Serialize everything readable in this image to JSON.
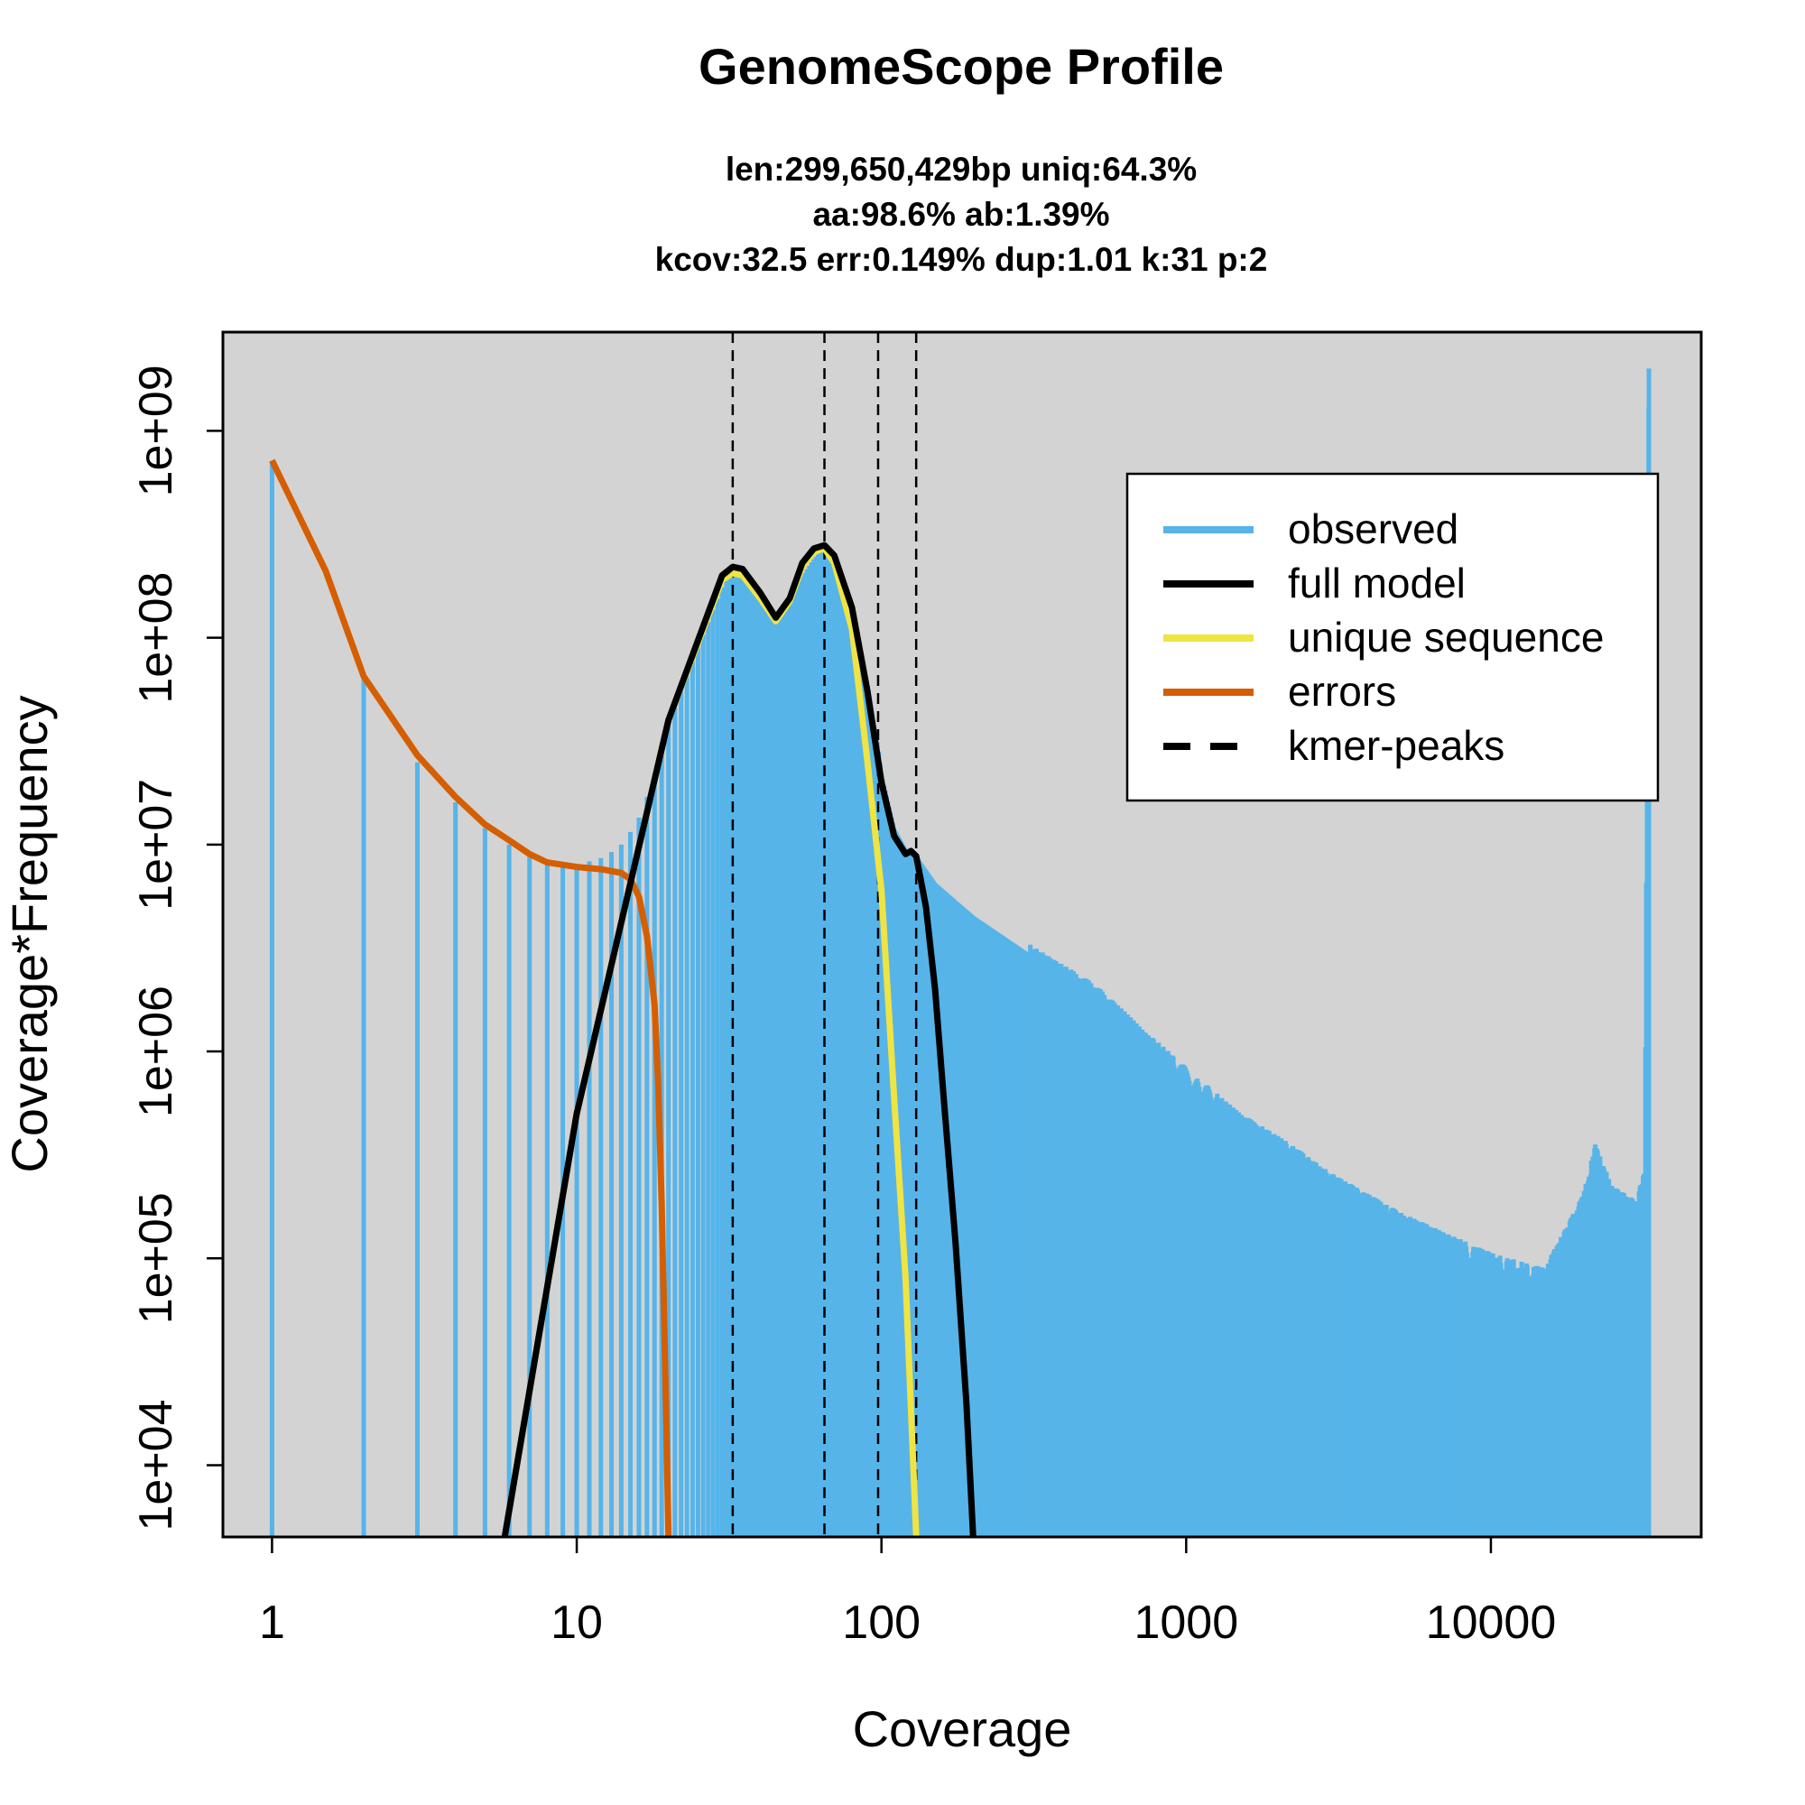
{
  "chart_data": {
    "type": "bar",
    "title": "GenomeScope Profile",
    "subtitle_lines": [
      "len:299,650,429bp uniq:64.3%",
      "aa:98.6% ab:1.39%",
      "kcov:32.5 err:0.149%  dup:1.01  k:31 p:2"
    ],
    "xlabel": "Coverage",
    "ylabel": "Coverage*Frequency",
    "x_scale": "log",
    "y_scale": "log",
    "xlim": [
      0.69,
      49000
    ],
    "ylim": [
      4500,
      3000000000
    ],
    "x_ticks": [
      1,
      10,
      100,
      1000,
      10000
    ],
    "x_tick_labels": [
      "1",
      "10",
      "100",
      "1000",
      "10000"
    ],
    "y_ticks": [
      10000,
      100000,
      1000000,
      10000000,
      100000000,
      1000000000
    ],
    "y_tick_labels": [
      "1e+04",
      "1e+05",
      "1e+06",
      "1e+07",
      "1e+08",
      "1e+09"
    ],
    "background_color": "#d3d3d3",
    "legend_position": "top-right",
    "legend": [
      {
        "label": "observed",
        "color": "#56b4e9",
        "style": "solid"
      },
      {
        "label": "full model",
        "color": "#000000",
        "style": "solid"
      },
      {
        "label": "unique sequence",
        "color": "#f0e442",
        "style": "solid"
      },
      {
        "label": "errors",
        "color": "#d55e00",
        "style": "solid"
      },
      {
        "label": "kmer-peaks",
        "color": "#000000",
        "style": "dashed"
      }
    ],
    "kmer_peaks": [
      32.5,
      65,
      97.5,
      130
    ],
    "observed": {
      "x": [
        1,
        2,
        3,
        4,
        5,
        6,
        7,
        8,
        9,
        10,
        11,
        12,
        13,
        14,
        15,
        16,
        17,
        18,
        19,
        20,
        22,
        25,
        30,
        32.5,
        40,
        45,
        50,
        60,
        65,
        70,
        80,
        90,
        97.5,
        100,
        110,
        120,
        130,
        150,
        200,
        300,
        500,
        700,
        1000,
        1500,
        2000,
        3000,
        5000,
        7000,
        10000,
        15000,
        20000,
        22000,
        25000,
        30000,
        32000,
        33000
      ],
      "y": [
        700000000,
        65000000,
        25000000,
        16000000,
        12000000,
        10000000,
        9000000,
        8500000,
        8200000,
        8000000,
        8300000,
        8600000,
        9200000,
        10000000,
        11500000,
        13500000,
        17000000,
        22000000,
        30000000,
        38000000,
        55000000,
        90000000,
        175000000,
        215000000,
        170000000,
        125000000,
        160000000,
        240000000,
        270000000,
        230000000,
        120000000,
        55000000,
        30000000,
        22000000,
        12000000,
        9500000,
        8800000,
        6500000,
        4500000,
        3000000,
        1900000,
        1200000,
        750000,
        450000,
        350000,
        230000,
        150000,
        120000,
        95000,
        80000,
        180000,
        320000,
        200000,
        170000,
        250000,
        2000000000
      ]
    },
    "errors": {
      "x": [
        1,
        1.5,
        2,
        3,
        4,
        5,
        6,
        7,
        8,
        10,
        12,
        14,
        15,
        16,
        17,
        18,
        18.5,
        19,
        19.5,
        20
      ],
      "y": [
        720000000,
        210000000,
        65000000,
        27000000,
        17000000,
        12500000,
        10500000,
        9000000,
        8200000,
        7800000,
        7600000,
        7300000,
        6800000,
        5600000,
        3600000,
        1700000,
        700000,
        180000,
        30000,
        4500
      ]
    },
    "unique_sequence": {
      "x": [
        5.8,
        10,
        20,
        30,
        32.5,
        35,
        40,
        45,
        50,
        55,
        60,
        65,
        70,
        80,
        90,
        100,
        110,
        120,
        130
      ],
      "y": [
        4500,
        500000,
        40000000,
        190000000,
        205000000,
        200000000,
        155000000,
        120000000,
        150000000,
        220000000,
        260000000,
        270000000,
        230000000,
        110000000,
        25000000,
        6000000,
        600000,
        80000,
        4500
      ]
    },
    "full_model": {
      "x": [
        5.8,
        10,
        20,
        30,
        32.5,
        35,
        40,
        45,
        50,
        55,
        60,
        65,
        70,
        80,
        90,
        100,
        110,
        120,
        125,
        130,
        140,
        150,
        160,
        175,
        190,
        200
      ],
      "y": [
        4500,
        500000,
        40000000,
        200000000,
        220000000,
        215000000,
        165000000,
        125000000,
        155000000,
        230000000,
        270000000,
        280000000,
        250000000,
        140000000,
        55000000,
        20000000,
        11000000,
        9000000,
        9300000,
        8800000,
        5000000,
        2000000,
        600000,
        120000,
        20000,
        4500
      ]
    }
  }
}
